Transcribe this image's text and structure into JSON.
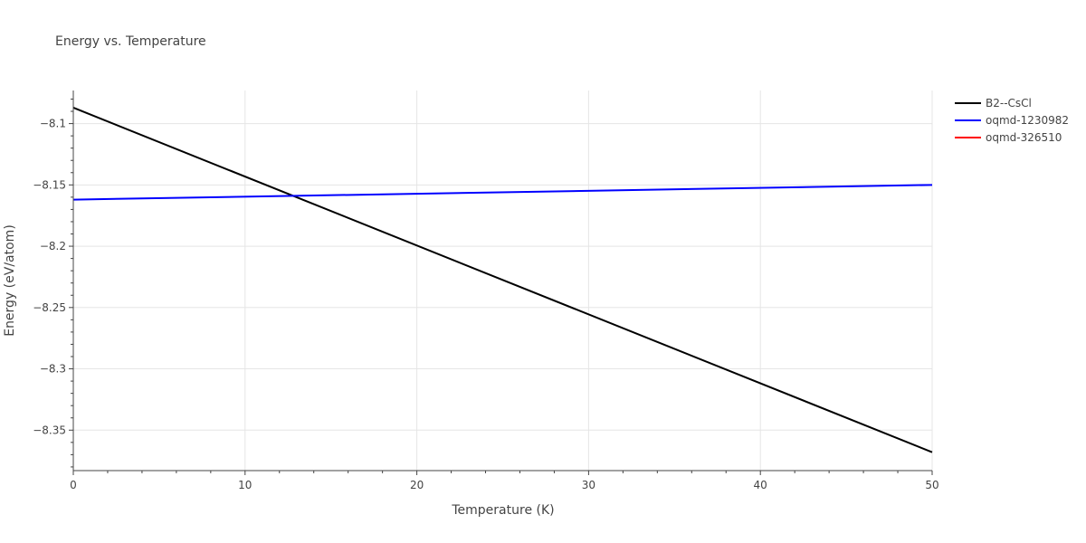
{
  "chart_data": {
    "type": "line",
    "title": "Energy vs. Temperature",
    "xlabel": "Temperature (K)",
    "ylabel": "Energy (eV/atom)",
    "xlim": [
      0,
      50
    ],
    "ylim": [
      -8.383,
      -8.073
    ],
    "x_ticks": [
      0,
      10,
      20,
      30,
      40,
      50
    ],
    "x_tick_labels": [
      "0",
      "10",
      "20",
      "30",
      "40",
      "50"
    ],
    "y_ticks": [
      -8.1,
      -8.15,
      -8.2,
      -8.25,
      -8.3,
      -8.35
    ],
    "y_tick_labels": [
      "−8.1",
      "−8.15",
      "−8.2",
      "−8.25",
      "−8.3",
      "−8.35"
    ],
    "grid": true,
    "legend_position": "top-right",
    "series": [
      {
        "name": "B2--CsCl",
        "color": "#000000",
        "x": [
          0,
          50
        ],
        "y": [
          -8.087,
          -8.368
        ]
      },
      {
        "name": "oqmd-1230982",
        "color": "#0000ff",
        "x": [
          0,
          50
        ],
        "y": [
          -8.162,
          -8.15
        ]
      },
      {
        "name": "oqmd-326510",
        "color": "#ff0000",
        "x": [],
        "y": []
      }
    ]
  }
}
